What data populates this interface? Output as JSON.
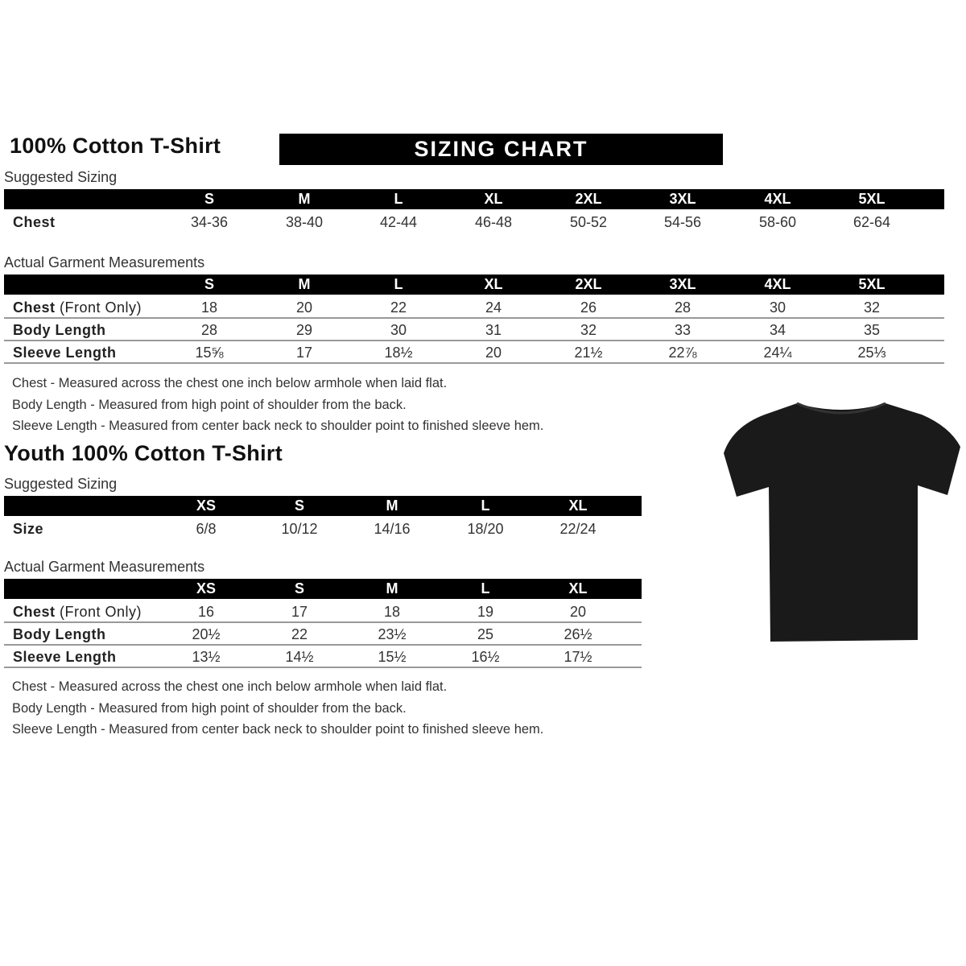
{
  "adult": {
    "title": "100% Cotton T-Shirt",
    "banner": "SIZING CHART",
    "suggested_label": "Suggested Sizing",
    "sizes": [
      "S",
      "M",
      "L",
      "XL",
      "2XL",
      "3XL",
      "4XL",
      "5XL"
    ],
    "suggested_rows": [
      {
        "label": "Chest",
        "values": [
          "34-36",
          "38-40",
          "42-44",
          "46-48",
          "50-52",
          "54-56",
          "58-60",
          "62-64"
        ]
      }
    ],
    "actual_label": "Actual Garment Measurements",
    "actual_rows": [
      {
        "label": "Chest",
        "label_note": "(Front Only)",
        "values": [
          "18",
          "20",
          "22",
          "24",
          "26",
          "28",
          "30",
          "32"
        ]
      },
      {
        "label": "Body Length",
        "label_note": "",
        "values": [
          "28",
          "29",
          "30",
          "31",
          "32",
          "33",
          "34",
          "35"
        ]
      },
      {
        "label": "Sleeve Length",
        "label_note": "",
        "values": [
          "15⅝",
          "17",
          "18½",
          "20",
          "21½",
          "22⅞",
          "24¼",
          "25⅓"
        ]
      }
    ],
    "notes": [
      "Chest - Measured across the chest one inch below armhole when laid flat.",
      "Body Length - Measured from high point of shoulder from the back.",
      "Sleeve Length - Measured from center back neck to shoulder point to finished sleeve hem."
    ]
  },
  "youth": {
    "title": "Youth 100% Cotton T-Shirt",
    "suggested_label": "Suggested Sizing",
    "sizes": [
      "XS",
      "S",
      "M",
      "L",
      "XL"
    ],
    "suggested_rows": [
      {
        "label": "Size",
        "values": [
          "6/8",
          "10/12",
          "14/16",
          "18/20",
          "22/24"
        ]
      }
    ],
    "actual_label": "Actual Garment Measurements",
    "actual_rows": [
      {
        "label": "Chest",
        "label_note": "(Front Only)",
        "values": [
          "16",
          "17",
          "18",
          "19",
          "20"
        ]
      },
      {
        "label": "Body Length",
        "label_note": "",
        "values": [
          "20½",
          "22",
          "23½",
          "25",
          "26½"
        ]
      },
      {
        "label": "Sleeve Length",
        "label_note": "",
        "values": [
          "13½",
          "14½",
          "15½",
          "16½",
          "17½"
        ]
      }
    ],
    "notes": [
      "Chest - Measured across the chest one inch below armhole when laid flat.",
      "Body Length - Measured from high point of shoulder from the back.",
      "Sleeve Length - Measured from center back neck to shoulder point to finished sleeve hem."
    ]
  },
  "tshirt_color": "#1a1a1a"
}
